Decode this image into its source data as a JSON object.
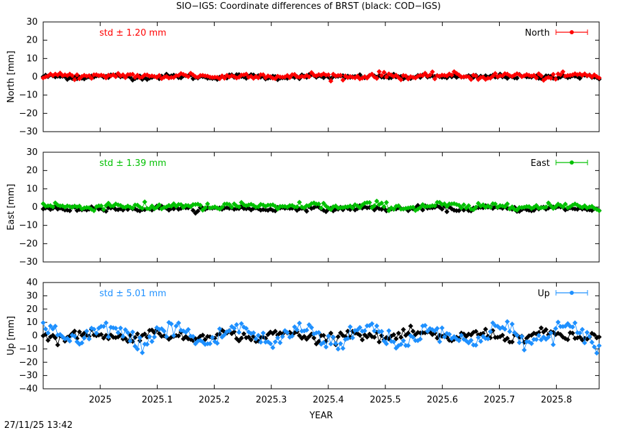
{
  "title": "SIO−IGS: Coordinate differences of BRST (black: COD−IGS)",
  "timestamp": "27/11/25 13:42",
  "chart_data": [
    {
      "type": "scatter",
      "panel": "north",
      "ylabel": "North [mm]",
      "ylim": [
        -30,
        30
      ],
      "yticks": [
        -30,
        -20,
        -10,
        0,
        10,
        20,
        30
      ],
      "xlim": [
        2024.9,
        2025.875
      ],
      "std_label": "std ± 1.20 mm",
      "legend": "North",
      "color": "#ff0000",
      "ref_color": "#000000",
      "legend_position": "top-right",
      "std": 1.2,
      "ref_std": 0.9,
      "amp": 0.6,
      "ref_amp": 0.3
    },
    {
      "type": "scatter",
      "panel": "east",
      "ylabel": "East [mm]",
      "ylim": [
        -30,
        30
      ],
      "yticks": [
        -30,
        -20,
        -10,
        0,
        10,
        20,
        30
      ],
      "xlim": [
        2024.9,
        2025.875
      ],
      "std_label": "std ± 1.39 mm",
      "legend": "East",
      "color": "#00c000",
      "ref_color": "#000000",
      "legend_position": "top-right",
      "std": 1.39,
      "ref_std": 0.9,
      "amp": 0.8,
      "ref_amp": 0.4,
      "ref_offset": -0.8
    },
    {
      "type": "scatter",
      "panel": "up",
      "ylabel": "Up [mm]",
      "xlabel": "YEAR",
      "ylim": [
        -40,
        40
      ],
      "yticks": [
        -40,
        -30,
        -20,
        -10,
        0,
        10,
        20,
        30,
        40
      ],
      "xlim": [
        2024.9,
        2025.875
      ],
      "xticks": [
        2025,
        2025.1,
        2025.2,
        2025.3,
        2025.4,
        2025.5,
        2025.6,
        2025.7,
        2025.8
      ],
      "std_label": "std ± 5.01 mm",
      "legend": "Up",
      "color": "#1e90ff",
      "ref_color": "#000000",
      "legend_position": "top-right",
      "std": 5.01,
      "ref_std": 2.5,
      "amp": 6,
      "ref_amp": 2
    }
  ]
}
